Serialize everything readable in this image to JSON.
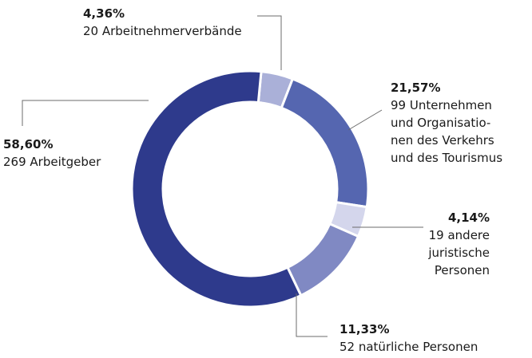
{
  "chart_data": {
    "type": "pie",
    "title": "",
    "donut": true,
    "slices": [
      {
        "key": "arbeitnehmer",
        "percent": 4.36,
        "count": 20,
        "pct_label": "4,36%",
        "desc": "20 Arbeitnehmerverbände",
        "color": "#aab0d8"
      },
      {
        "key": "unternehmen",
        "percent": 21.57,
        "count": 99,
        "pct_label": "21,57%",
        "desc": "99 Unternehmen\nund Organisatio-\nnen des Verkehrs\nund des Tourismus",
        "color": "#5566b0"
      },
      {
        "key": "juristische",
        "percent": 4.14,
        "count": 19,
        "pct_label": "4,14%",
        "desc": "19 andere\njuristische\nPersonen",
        "color": "#d4d6ec"
      },
      {
        "key": "natuerliche",
        "percent": 11.33,
        "count": 52,
        "pct_label": "11,33%",
        "desc": "52 natürliche Personen",
        "color": "#8089c3"
      },
      {
        "key": "arbeitgeber",
        "percent": 58.6,
        "count": 269,
        "pct_label": "58,60%",
        "desc": "269 Arbeitgeber",
        "color": "#2e3a8c"
      }
    ]
  }
}
